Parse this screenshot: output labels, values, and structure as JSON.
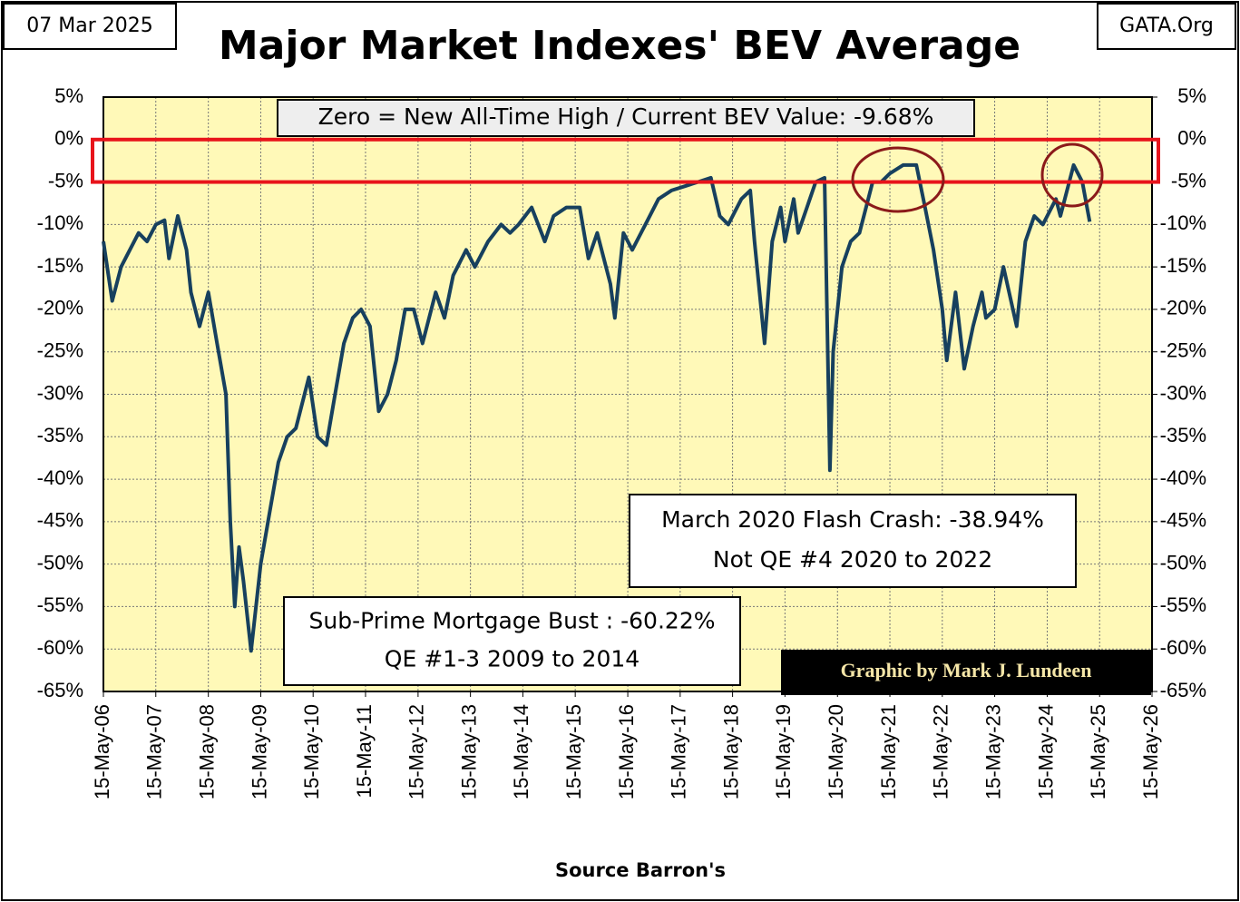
{
  "chart_data": {
    "type": "line",
    "title": "Major Market Indexes' BEV Average",
    "date_label": "07 Mar 2025",
    "source_site": "GATA.Org",
    "x_axis_label": "Source Barron's",
    "credit": "Graphic by Mark J. Lundeen",
    "annotations": {
      "top_box": "Zero = New All-Time High / Current BEV Value:  -9.68%",
      "crash_line1": "March 2020 Flash Crash:  -38.94%",
      "crash_line2": "Not QE #4 2020 to 2022",
      "bust_line1": "Sub-Prime Mortgage Bust : -60.22%",
      "bust_line2": "QE #1-3 2009 to 2014"
    },
    "color": "#17405e",
    "highlight": {
      "from": -5,
      "to": 0,
      "color": "#e8141b"
    },
    "grid": true,
    "xlim": [
      "2006-05-15",
      "2026-05-15"
    ],
    "xticks": [
      {
        "value": "2006-05-15",
        "label": "15-May-06"
      },
      {
        "value": "2007-05-15",
        "label": "15-May-07"
      },
      {
        "value": "2008-05-15",
        "label": "15-May-08"
      },
      {
        "value": "2009-05-15",
        "label": "15-May-09"
      },
      {
        "value": "2010-05-15",
        "label": "15-May-10"
      },
      {
        "value": "2011-05-15",
        "label": "15-May-11"
      },
      {
        "value": "2012-05-15",
        "label": "15-May-12"
      },
      {
        "value": "2013-05-15",
        "label": "15-May-13"
      },
      {
        "value": "2014-05-15",
        "label": "15-May-14"
      },
      {
        "value": "2015-05-15",
        "label": "15-May-15"
      },
      {
        "value": "2016-05-15",
        "label": "15-May-16"
      },
      {
        "value": "2017-05-15",
        "label": "15-May-17"
      },
      {
        "value": "2018-05-15",
        "label": "15-May-18"
      },
      {
        "value": "2019-05-15",
        "label": "15-May-19"
      },
      {
        "value": "2020-05-15",
        "label": "15-May-20"
      },
      {
        "value": "2021-05-15",
        "label": "15-May-21"
      },
      {
        "value": "2022-05-15",
        "label": "15-May-22"
      },
      {
        "value": "2023-05-15",
        "label": "15-May-23"
      },
      {
        "value": "2024-05-15",
        "label": "15-May-24"
      },
      {
        "value": "2025-05-15",
        "label": "15-May-25"
      },
      {
        "value": "2026-05-15",
        "label": "15-May-26"
      }
    ],
    "ylim": [
      -65,
      5
    ],
    "yticks": [
      {
        "value": 5,
        "label": "5%"
      },
      {
        "value": 0,
        "label": "0%"
      },
      {
        "value": -5,
        "label": "-5%"
      },
      {
        "value": -10,
        "label": "-10%"
      },
      {
        "value": -15,
        "label": "-15%"
      },
      {
        "value": -20,
        "label": "-20%"
      },
      {
        "value": -25,
        "label": "-25%"
      },
      {
        "value": -30,
        "label": "-30%"
      },
      {
        "value": -35,
        "label": "-35%"
      },
      {
        "value": -40,
        "label": "-40%"
      },
      {
        "value": -45,
        "label": "-45%"
      },
      {
        "value": -50,
        "label": "-50%"
      },
      {
        "value": -55,
        "label": "-55%"
      },
      {
        "value": -60,
        "label": "-60%"
      },
      {
        "value": -65,
        "label": "-65%"
      }
    ],
    "y2lim": [
      -65,
      5
    ],
    "y2ticks": [
      {
        "value": 5,
        "label": "5%"
      },
      {
        "value": 0,
        "label": "0%"
      },
      {
        "value": -5,
        "label": "-5%"
      },
      {
        "value": -10,
        "label": "-10%"
      },
      {
        "value": -15,
        "label": "-15%"
      },
      {
        "value": -20,
        "label": "-20%"
      },
      {
        "value": -25,
        "label": "-25%"
      },
      {
        "value": -30,
        "label": "-30%"
      },
      {
        "value": -35,
        "label": "-35%"
      },
      {
        "value": -40,
        "label": "-40%"
      },
      {
        "value": -45,
        "label": "-45%"
      },
      {
        "value": -50,
        "label": "-50%"
      },
      {
        "value": -55,
        "label": "-55%"
      },
      {
        "value": -60,
        "label": "-60%"
      },
      {
        "value": -65,
        "label": "-65%"
      }
    ],
    "x": [
      "2006-05-15",
      "2006-07-15",
      "2006-09-15",
      "2006-11-15",
      "2007-01-15",
      "2007-03-15",
      "2007-05-15",
      "2007-07-15",
      "2007-08-15",
      "2007-10-15",
      "2007-12-15",
      "2008-01-15",
      "2008-03-15",
      "2008-05-15",
      "2008-07-15",
      "2008-09-15",
      "2008-10-15",
      "2008-11-15",
      "2008-12-15",
      "2009-01-15",
      "2009-03-09",
      "2009-05-15",
      "2009-07-15",
      "2009-09-15",
      "2009-11-15",
      "2010-01-15",
      "2010-04-15",
      "2010-06-15",
      "2010-08-15",
      "2010-10-15",
      "2010-12-15",
      "2011-02-15",
      "2011-04-15",
      "2011-06-15",
      "2011-08-15",
      "2011-10-15",
      "2011-12-15",
      "2012-02-15",
      "2012-04-15",
      "2012-06-15",
      "2012-09-15",
      "2012-11-15",
      "2013-01-15",
      "2013-04-15",
      "2013-06-15",
      "2013-09-15",
      "2013-12-15",
      "2014-02-15",
      "2014-04-15",
      "2014-07-15",
      "2014-10-15",
      "2014-12-15",
      "2015-03-15",
      "2015-06-15",
      "2015-08-15",
      "2015-10-15",
      "2016-01-15",
      "2016-02-15",
      "2016-04-15",
      "2016-06-15",
      "2016-09-15",
      "2016-12-15",
      "2017-03-15",
      "2017-06-15",
      "2017-09-15",
      "2017-12-15",
      "2018-02-15",
      "2018-04-15",
      "2018-07-15",
      "2018-09-15",
      "2018-10-15",
      "2018-12-24",
      "2019-02-15",
      "2019-04-15",
      "2019-05-15",
      "2019-07-15",
      "2019-08-15",
      "2019-10-15",
      "2019-12-15",
      "2020-02-15",
      "2020-03-23",
      "2020-04-15",
      "2020-06-15",
      "2020-08-15",
      "2020-10-15",
      "2021-01-15",
      "2021-03-15",
      "2021-05-15",
      "2021-08-15",
      "2021-11-15",
      "2022-01-15",
      "2022-03-15",
      "2022-05-15",
      "2022-06-15",
      "2022-08-15",
      "2022-10-15",
      "2022-12-15",
      "2023-02-15",
      "2023-03-15",
      "2023-05-15",
      "2023-07-15",
      "2023-10-15",
      "2023-12-15",
      "2024-02-15",
      "2024-04-15",
      "2024-07-15",
      "2024-08-15",
      "2024-11-15",
      "2025-01-15",
      "2025-03-07"
    ],
    "values": [
      -12,
      -19,
      -15,
      -13,
      -11,
      -12,
      -10,
      -9.5,
      -14,
      -9,
      -13,
      -18,
      -22,
      -18,
      -24,
      -30,
      -45,
      -55,
      -48,
      -52,
      -60.22,
      -50,
      -44,
      -38,
      -35,
      -34,
      -28,
      -35,
      -36,
      -30,
      -24,
      -21,
      -20,
      -22,
      -32,
      -30,
      -26,
      -20,
      -20,
      -24,
      -18,
      -21,
      -16,
      -13,
      -15,
      -12,
      -10,
      -11,
      -10,
      -8,
      -12,
      -9,
      -8,
      -8,
      -14,
      -11,
      -17,
      -21,
      -11,
      -13,
      -10,
      -7,
      -6,
      -5.5,
      -5,
      -4.5,
      -9,
      -10,
      -7,
      -6,
      -12,
      -24,
      -12,
      -8,
      -12,
      -7,
      -11,
      -8,
      -5,
      -4.5,
      -38.94,
      -25,
      -15,
      -12,
      -11,
      -5,
      -5,
      -4,
      -3,
      -3,
      -8,
      -13,
      -20,
      -26,
      -18,
      -27,
      -22,
      -18,
      -21,
      -20,
      -15,
      -22,
      -12,
      -9,
      -10,
      -7,
      -9,
      -3,
      -5,
      -9.68
    ]
  }
}
